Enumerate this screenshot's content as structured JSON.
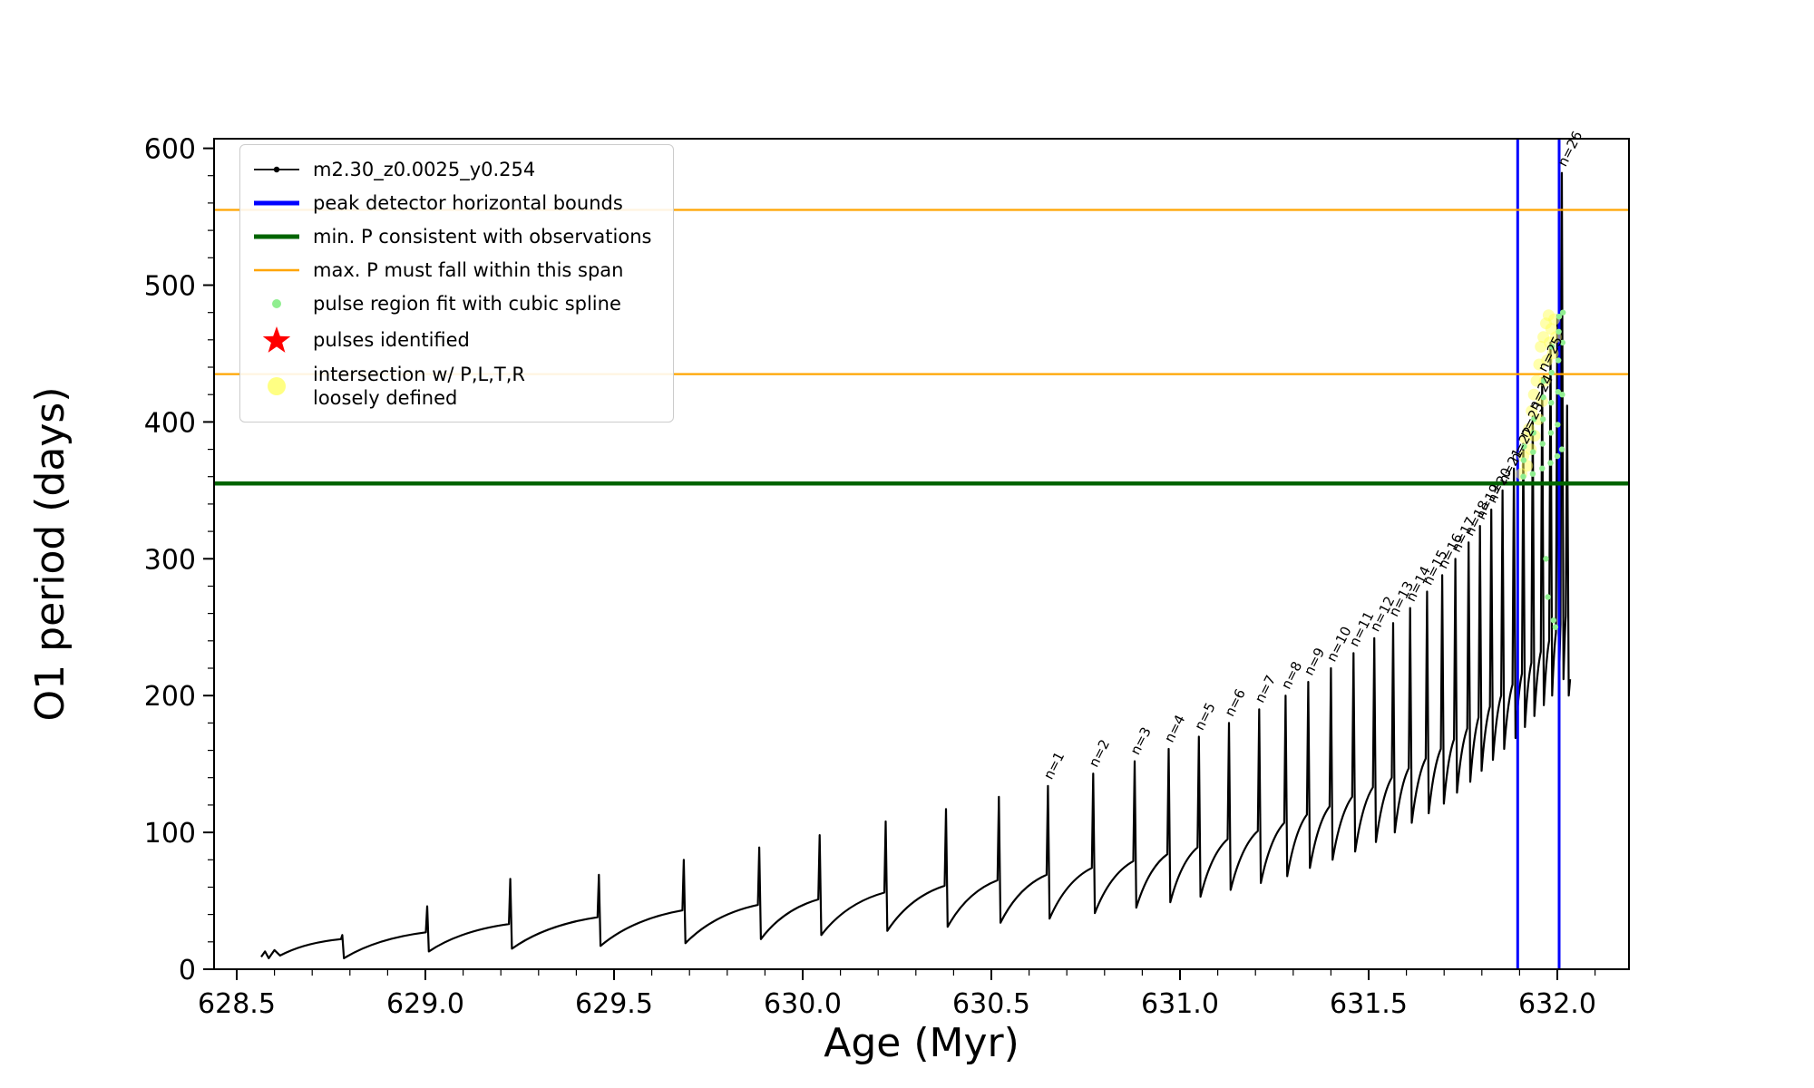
{
  "chart_data": {
    "type": "line",
    "title": "",
    "xlabel": "Age (Myr)",
    "ylabel": "O1 period (days)",
    "xlim": [
      628.44,
      632.19
    ],
    "ylim": [
      0,
      607
    ],
    "xticks": [
      628.5,
      629.0,
      629.5,
      630.0,
      630.5,
      631.0,
      631.5,
      632.0
    ],
    "yticks": [
      0,
      100,
      200,
      300,
      400,
      500,
      600
    ],
    "x_minor_step": 0.1,
    "y_minor_step": 20,
    "grid": false,
    "legend_position": "upper-left",
    "series_color": "#000000",
    "spline_color": "#90EE90",
    "intersection_color": "#FFFF5A",
    "hlines": [
      {
        "y": 555,
        "color": "#FFA500",
        "width": 2.2,
        "name": "max-p-span-upper"
      },
      {
        "y": 435,
        "color": "#FFA500",
        "width": 2.2,
        "name": "max-p-span-lower"
      },
      {
        "y": 355,
        "color": "#006400",
        "width": 4.5,
        "name": "min-p-observations"
      }
    ],
    "vlines": [
      {
        "x": 631.895,
        "color": "#0000FF",
        "width": 3,
        "name": "peak-bound-left"
      },
      {
        "x": 632.005,
        "color": "#0000FF",
        "width": 3,
        "name": "peak-bound-right"
      }
    ],
    "curve_start": [
      [
        628.565,
        9
      ],
      [
        628.575,
        13
      ],
      [
        628.585,
        8
      ],
      [
        628.6,
        14
      ],
      [
        628.615,
        10
      ],
      [
        628.63,
        12
      ]
    ],
    "pulses": [
      {
        "t": 628.78,
        "pre": 22,
        "peak": 25,
        "post": 8
      },
      {
        "t": 629.005,
        "pre": 27,
        "peak": 46,
        "post": 13
      },
      {
        "t": 629.225,
        "pre": 33,
        "peak": 66,
        "post": 15
      },
      {
        "t": 629.46,
        "pre": 38,
        "peak": 69,
        "post": 17
      },
      {
        "t": 629.685,
        "pre": 43,
        "peak": 80,
        "post": 19
      },
      {
        "t": 629.885,
        "pre": 47,
        "peak": 89,
        "post": 22
      },
      {
        "t": 630.045,
        "pre": 51,
        "peak": 98,
        "post": 25
      },
      {
        "t": 630.22,
        "pre": 56,
        "peak": 108,
        "post": 28
      },
      {
        "t": 630.38,
        "pre": 61,
        "peak": 117,
        "post": 31
      },
      {
        "t": 630.52,
        "pre": 65,
        "peak": 126,
        "post": 34
      },
      {
        "t": 630.65,
        "pre": 69,
        "peak": 134,
        "post": 37,
        "label": "n=1"
      },
      {
        "t": 630.77,
        "pre": 74,
        "peak": 143,
        "post": 41,
        "label": "n=2"
      },
      {
        "t": 630.88,
        "pre": 79,
        "peak": 152,
        "post": 45,
        "label": "n=3"
      },
      {
        "t": 630.97,
        "pre": 84,
        "peak": 161,
        "post": 49,
        "label": "n=4"
      },
      {
        "t": 631.05,
        "pre": 89,
        "peak": 170,
        "post": 53,
        "label": "n=5"
      },
      {
        "t": 631.13,
        "pre": 95,
        "peak": 180,
        "post": 58,
        "label": "n=6"
      },
      {
        "t": 631.21,
        "pre": 101,
        "peak": 190,
        "post": 63,
        "label": "n=7"
      },
      {
        "t": 631.28,
        "pre": 107,
        "peak": 200,
        "post": 68,
        "label": "n=8"
      },
      {
        "t": 631.34,
        "pre": 113,
        "peak": 210,
        "post": 74,
        "label": "n=9"
      },
      {
        "t": 631.4,
        "pre": 119,
        "peak": 220,
        "post": 80,
        "label": "n=10"
      },
      {
        "t": 631.46,
        "pre": 126,
        "peak": 231,
        "post": 86,
        "label": "n=11"
      },
      {
        "t": 631.515,
        "pre": 133,
        "peak": 242,
        "post": 93,
        "label": "n=12"
      },
      {
        "t": 631.565,
        "pre": 140,
        "peak": 253,
        "post": 100,
        "label": "n=13"
      },
      {
        "t": 631.61,
        "pre": 147,
        "peak": 264,
        "post": 107,
        "label": "n=14"
      },
      {
        "t": 631.655,
        "pre": 154,
        "peak": 276,
        "post": 114,
        "label": "n=15"
      },
      {
        "t": 631.695,
        "pre": 161,
        "peak": 288,
        "post": 121,
        "label": "n=16"
      },
      {
        "t": 631.73,
        "pre": 168,
        "peak": 300,
        "post": 129,
        "label": "n=17"
      },
      {
        "t": 631.765,
        "pre": 176,
        "peak": 312,
        "post": 137,
        "label": "n=18"
      },
      {
        "t": 631.795,
        "pre": 184,
        "peak": 324,
        "post": 145,
        "label": "n=19"
      },
      {
        "t": 631.825,
        "pre": 192,
        "peak": 336,
        "post": 153,
        "label": "n=20"
      },
      {
        "t": 631.855,
        "pre": 200,
        "peak": 350,
        "post": 161,
        "label": "n=21"
      },
      {
        "t": 631.885,
        "pre": 208,
        "peak": 366,
        "post": 169,
        "label": "n=22"
      },
      {
        "t": 631.91,
        "pre": 216,
        "peak": 384,
        "post": 177,
        "label": "n=23"
      },
      {
        "t": 631.935,
        "pre": 224,
        "peak": 404,
        "post": 185,
        "label": "n=24"
      },
      {
        "t": 631.96,
        "pre": 232,
        "peak": 432,
        "post": 193,
        "label": "n=25"
      },
      {
        "t": 631.982,
        "pre": 240,
        "peak": 458,
        "post": 200
      },
      {
        "t": 632.0,
        "pre": 246,
        "peak": 478,
        "post": 206
      },
      {
        "t": 632.012,
        "pre": 252,
        "peak": 582,
        "post": 212,
        "label": "n=26"
      },
      {
        "t": 632.026,
        "pre": 258,
        "peak": 412,
        "post": 200
      }
    ],
    "curve_end": [
      [
        632.034,
        212
      ]
    ],
    "spline_dots": [
      [
        631.91,
        360
      ],
      [
        631.911,
        372
      ],
      [
        631.912,
        382
      ],
      [
        631.935,
        362
      ],
      [
        631.936,
        378
      ],
      [
        631.937,
        392
      ],
      [
        631.938,
        402
      ],
      [
        631.96,
        366
      ],
      [
        631.961,
        384
      ],
      [
        631.962,
        402
      ],
      [
        631.963,
        418
      ],
      [
        631.964,
        430
      ],
      [
        631.982,
        370
      ],
      [
        631.983,
        392
      ],
      [
        631.984,
        414
      ],
      [
        631.985,
        436
      ],
      [
        631.986,
        455
      ],
      [
        632.0,
        375
      ],
      [
        632.001,
        398
      ],
      [
        632.002,
        422
      ],
      [
        632.003,
        445
      ],
      [
        632.004,
        466
      ],
      [
        632.005,
        477
      ],
      [
        632.012,
        380
      ],
      [
        632.013,
        420
      ],
      [
        632.014,
        458
      ],
      [
        632.015,
        480
      ],
      [
        631.97,
        300
      ],
      [
        631.975,
        272
      ],
      [
        631.99,
        255
      ],
      [
        631.995,
        250
      ]
    ],
    "intersection_dots": [
      [
        631.905,
        362
      ],
      [
        631.91,
        375
      ],
      [
        631.915,
        388
      ],
      [
        631.92,
        368
      ],
      [
        631.925,
        395
      ],
      [
        631.93,
        380
      ],
      [
        631.932,
        408
      ],
      [
        631.938,
        420
      ],
      [
        631.94,
        390
      ],
      [
        631.945,
        430
      ],
      [
        631.95,
        402
      ],
      [
        631.952,
        442
      ],
      [
        631.956,
        455
      ],
      [
        631.96,
        415
      ],
      [
        631.963,
        462
      ],
      [
        631.967,
        430
      ],
      [
        631.97,
        472
      ],
      [
        631.973,
        445
      ],
      [
        631.977,
        478
      ],
      [
        631.98,
        458
      ],
      [
        631.984,
        468
      ],
      [
        631.988,
        450
      ],
      [
        631.992,
        475
      ],
      [
        631.996,
        462
      ]
    ]
  },
  "legend": {
    "items": [
      {
        "label": "m2.30_z0.0025_y0.254",
        "type": "line-marker",
        "color": "#000000",
        "icon": "series-line-icon"
      },
      {
        "label": "peak detector horizontal bounds",
        "type": "line-thick",
        "color": "#0000FF",
        "icon": "peak-bounds-line-icon"
      },
      {
        "label": "min. P consistent with observations",
        "type": "line-thick",
        "color": "#006400",
        "icon": "min-p-line-icon"
      },
      {
        "label": "max. P must fall within this span",
        "type": "line-thin",
        "color": "#FFA500",
        "icon": "max-p-line-icon"
      },
      {
        "label": "pulse region fit with cubic spline",
        "type": "dot",
        "color": "#90EE90",
        "icon": "spline-dot-icon"
      },
      {
        "label": "pulses identified",
        "type": "star",
        "color": "#FF0000",
        "icon": "pulse-star-icon"
      },
      {
        "label": "intersection w/ P,L,T,R",
        "label2": "loosely defined",
        "type": "blob",
        "color": "#FFFF5A",
        "icon": "intersection-dot-icon"
      }
    ]
  }
}
